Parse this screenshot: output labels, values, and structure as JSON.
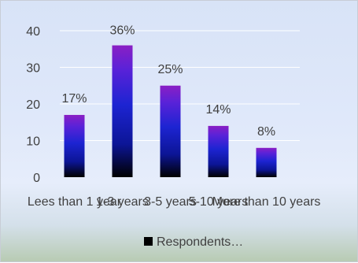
{
  "chart_data": {
    "type": "bar",
    "categories": [
      "Lees than 1 year",
      "1-3 years",
      "3-5 years",
      "5-10 years",
      "More than 10 years"
    ],
    "series": [
      {
        "name": "Respondents…",
        "values": [
          17,
          36,
          25,
          14,
          8
        ]
      }
    ],
    "data_labels": [
      "17%",
      "36%",
      "25%",
      "14%",
      "8%"
    ],
    "y_ticks": [
      "0",
      "10",
      "20",
      "30",
      "40"
    ],
    "ylim": [
      0,
      40
    ],
    "grid": true,
    "legend_position": "bottom",
    "colors": {
      "bar_top": "#7d1fc2",
      "bar_mid": "#1c1fd6",
      "bar_bottom": "#000000",
      "grid": "#ffffff"
    }
  }
}
